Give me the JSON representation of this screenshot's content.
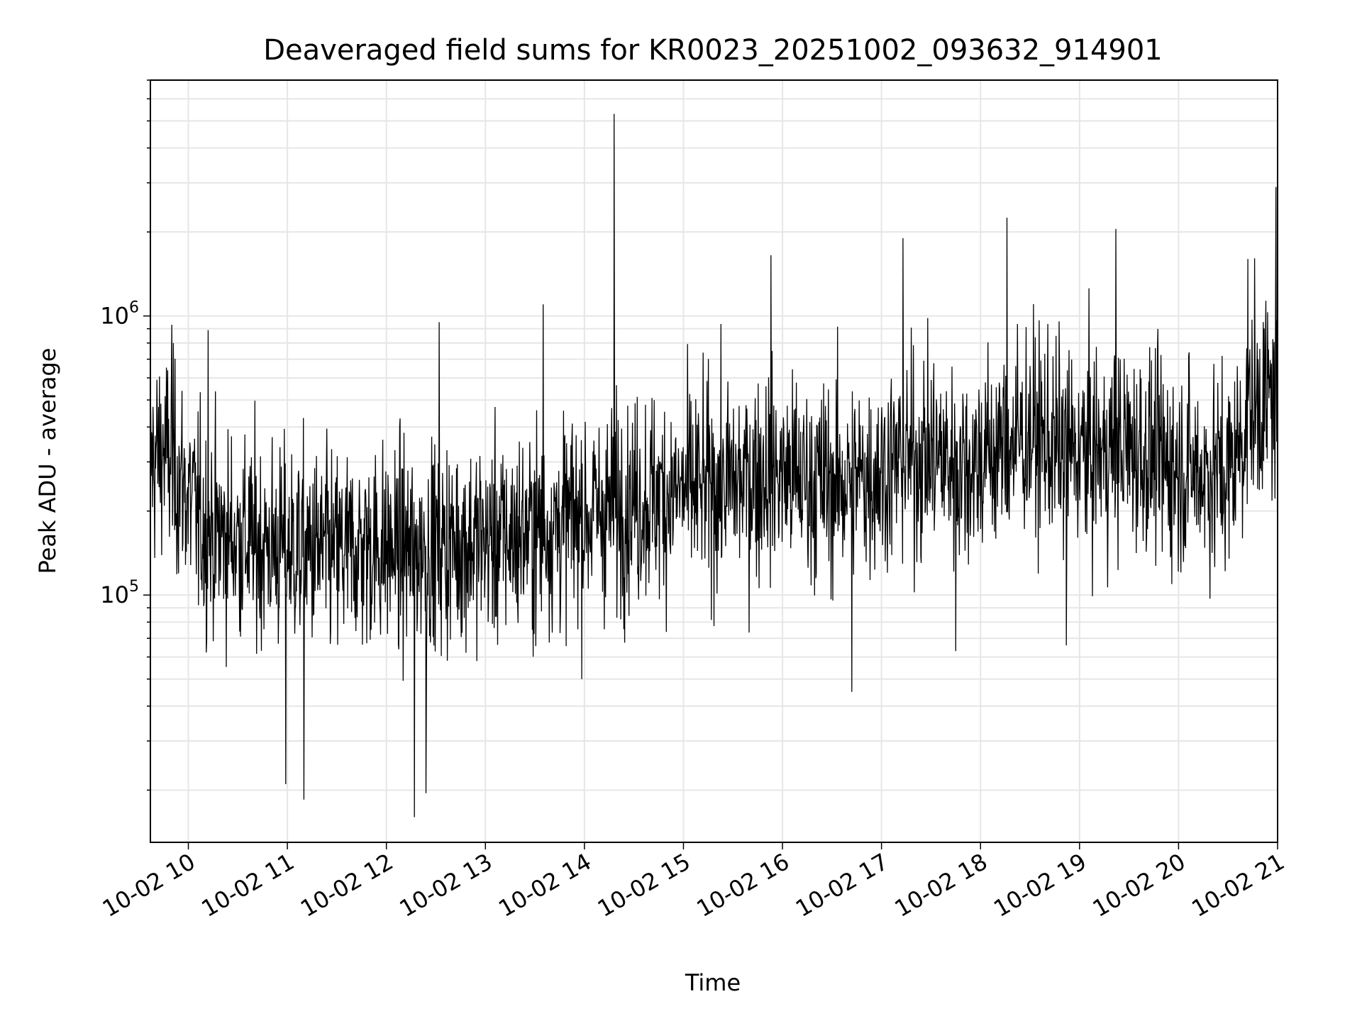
{
  "chart_data": {
    "type": "line",
    "title": "Deaveraged field sums for KR0023_20251002_093632_914901",
    "xlabel": "Time",
    "ylabel": "Peak ADU - average",
    "x_axis": {
      "type": "datetime",
      "range": [
        "2025-10-02 09:37",
        "2025-10-02 21:00"
      ],
      "ticks": [
        "2025-10-02 10:00",
        "2025-10-02 11:00",
        "2025-10-02 12:00",
        "2025-10-02 13:00",
        "2025-10-02 14:00",
        "2025-10-02 15:00",
        "2025-10-02 16:00",
        "2025-10-02 17:00",
        "2025-10-02 18:00",
        "2025-10-02 19:00",
        "2025-10-02 20:00",
        "2025-10-02 21:00"
      ],
      "tick_labels": [
        "10-02 10",
        "10-02 11",
        "10-02 12",
        "10-02 13",
        "10-02 14",
        "10-02 15",
        "10-02 16",
        "10-02 17",
        "10-02 18",
        "10-02 19",
        "10-02 20",
        "10-02 21"
      ],
      "tick_rotation": 30
    },
    "y_axis": {
      "scale": "log",
      "range": [
        13000,
        7000000
      ],
      "ticks": [
        100000,
        1000000
      ],
      "tick_labels": [
        {
          "base": "10",
          "exp": "5"
        },
        {
          "base": "10",
          "exp": "6"
        }
      ]
    },
    "grid": true,
    "line_color": "#000000",
    "series": [
      {
        "x": [
          "2025-10-02 09:37",
          "2025-10-02 09:45",
          "2025-10-02 09:55",
          "2025-10-02 10:10",
          "2025-10-02 10:30",
          "2025-10-02 10:50",
          "2025-10-02 11:10",
          "2025-10-02 11:30",
          "2025-10-02 11:50",
          "2025-10-02 12:10",
          "2025-10-02 12:30",
          "2025-10-02 12:50",
          "2025-10-02 13:10",
          "2025-10-02 13:30",
          "2025-10-02 13:50",
          "2025-10-02 14:10",
          "2025-10-02 14:30",
          "2025-10-02 14:50",
          "2025-10-02 15:10",
          "2025-10-02 15:30",
          "2025-10-02 15:50",
          "2025-10-02 16:10",
          "2025-10-02 16:30",
          "2025-10-02 16:50",
          "2025-10-02 17:10",
          "2025-10-02 17:30",
          "2025-10-02 17:50",
          "2025-10-02 18:10",
          "2025-10-02 18:30",
          "2025-10-02 18:50",
          "2025-10-02 19:10",
          "2025-10-02 19:30",
          "2025-10-02 19:50",
          "2025-10-02 20:10",
          "2025-10-02 20:30",
          "2025-10-02 20:45",
          "2025-10-02 21:00"
        ],
        "y": [
          300000,
          330000,
          260000,
          170000,
          160000,
          150000,
          145000,
          140000,
          150000,
          145000,
          150000,
          155000,
          160000,
          170000,
          185000,
          200000,
          220000,
          230000,
          240000,
          250000,
          280000,
          260000,
          250000,
          265000,
          300000,
          320000,
          290000,
          330000,
          380000,
          330000,
          320000,
          340000,
          300000,
          280000,
          270000,
          480000,
          520000
        ],
        "spikes": [
          {
            "x": "2025-10-02 14:18",
            "y": 5300000
          },
          {
            "x": "2025-10-02 20:59",
            "y": 2900000
          },
          {
            "x": "2025-10-02 18:16",
            "y": 2250000
          },
          {
            "x": "2025-10-02 19:22",
            "y": 2050000
          },
          {
            "x": "2025-10-02 17:13",
            "y": 1900000
          },
          {
            "x": "2025-10-02 15:53",
            "y": 1650000
          },
          {
            "x": "2025-10-02 20:42",
            "y": 1600000
          },
          {
            "x": "2025-10-02 13:35",
            "y": 1100000
          },
          {
            "x": "2025-10-02 12:32",
            "y": 950000
          },
          {
            "x": "2025-10-02 09:50",
            "y": 930000
          },
          {
            "x": "2025-10-02 10:12",
            "y": 890000
          },
          {
            "x": "2025-10-02 12:17",
            "y": 16000
          },
          {
            "x": "2025-10-02 11:10",
            "y": 18500
          },
          {
            "x": "2025-10-02 10:59",
            "y": 21000
          },
          {
            "x": "2025-10-02 12:24",
            "y": 19500
          },
          {
            "x": "2025-10-02 16:42",
            "y": 45000
          },
          {
            "x": "2025-10-02 17:45",
            "y": 63000
          },
          {
            "x": "2025-10-02 18:52",
            "y": 66000
          }
        ]
      }
    ]
  }
}
